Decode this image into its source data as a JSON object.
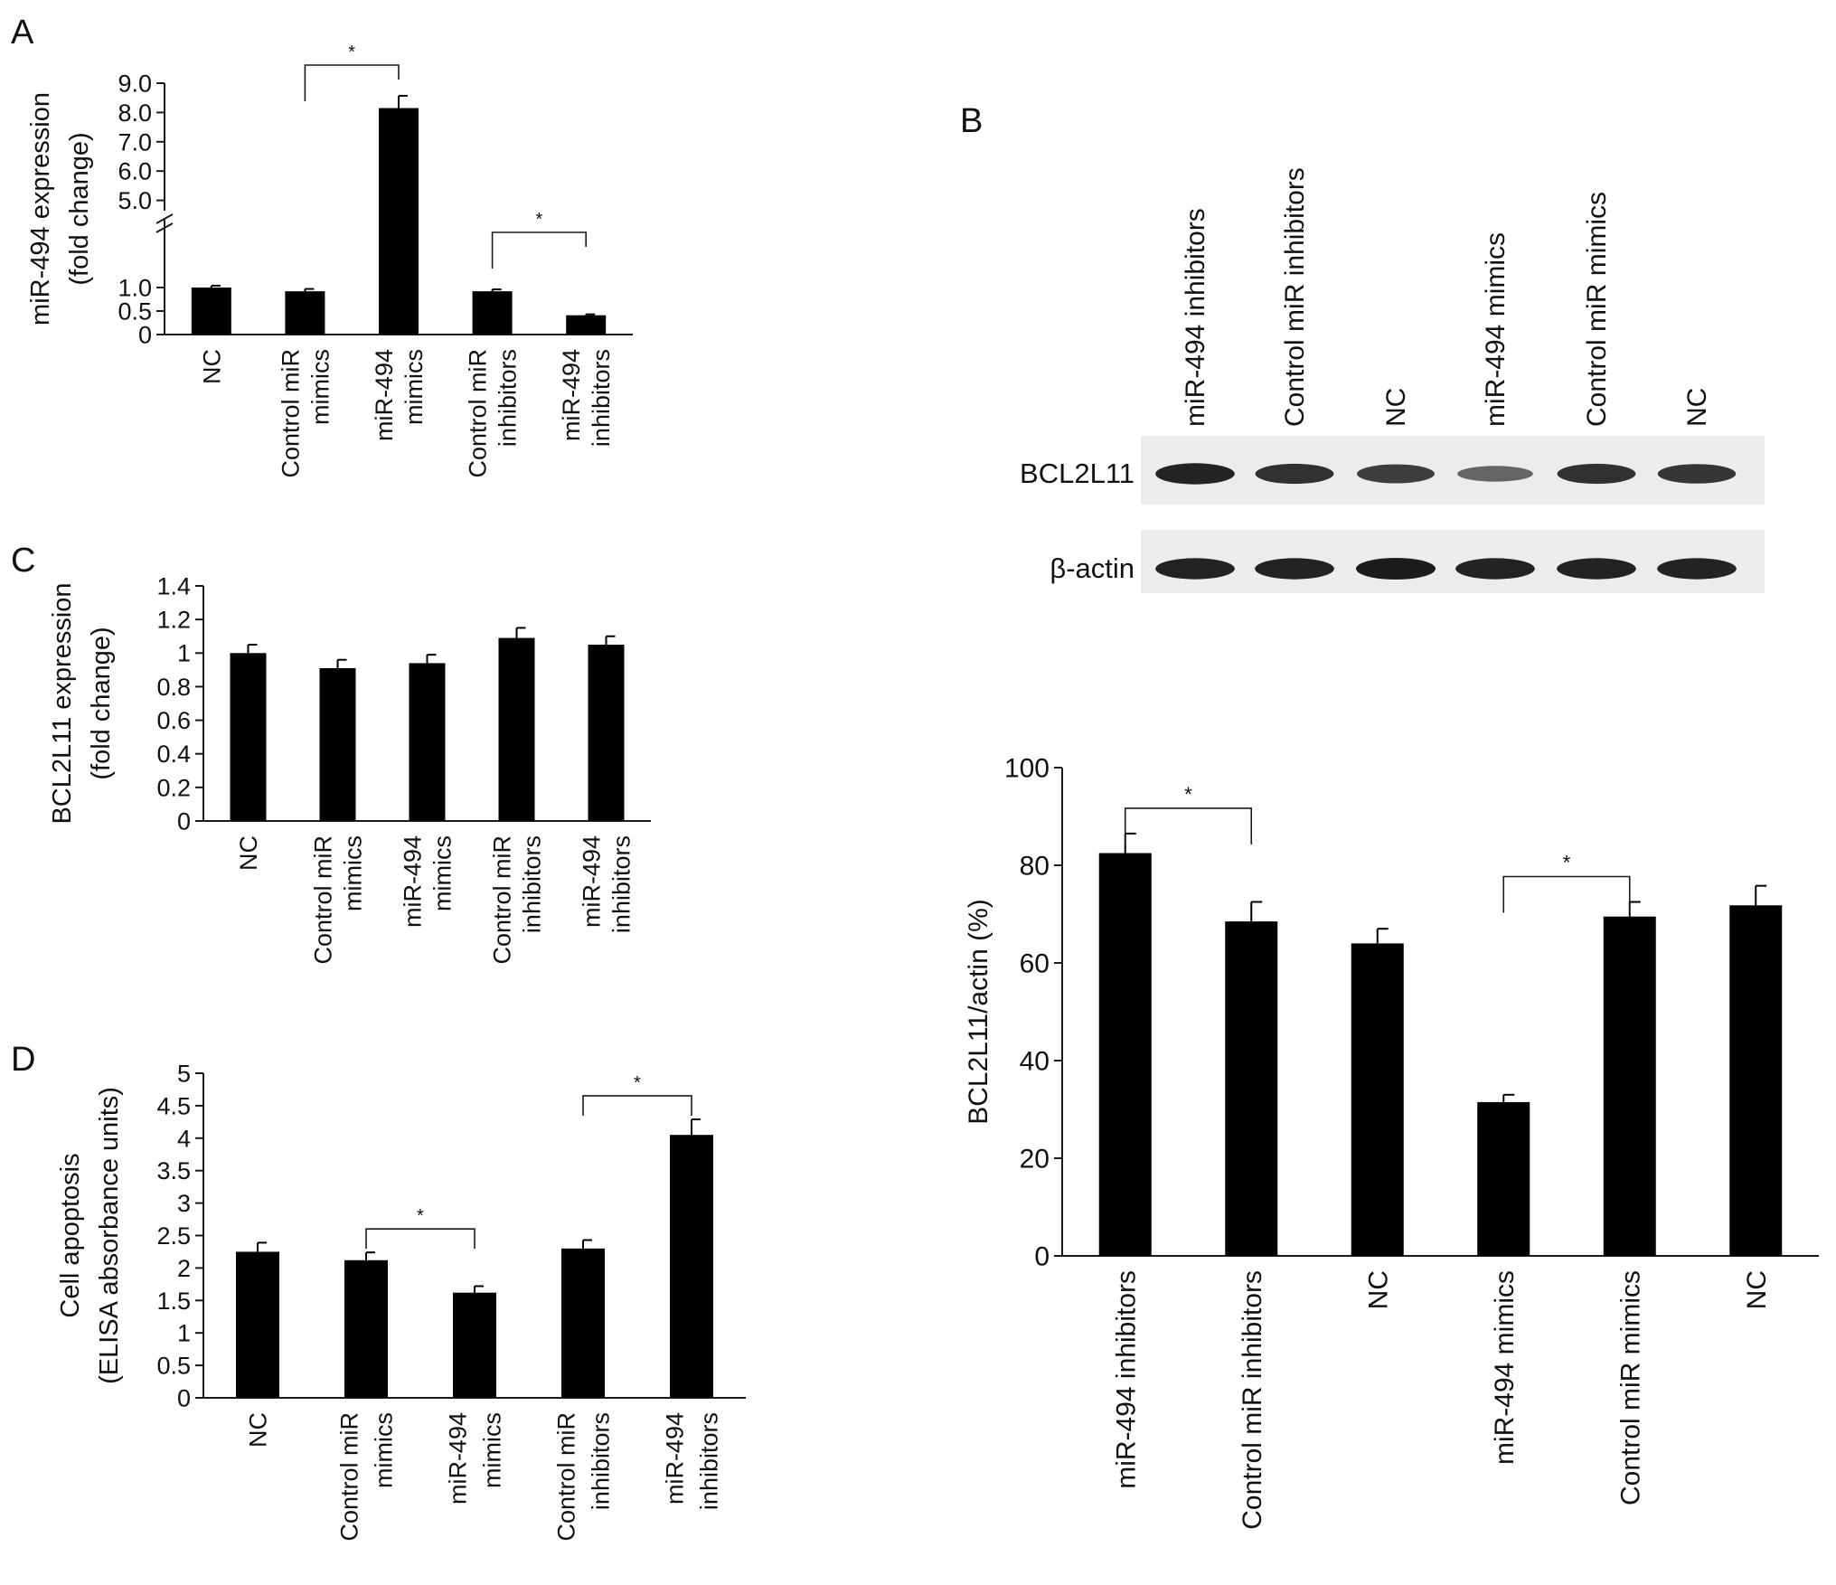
{
  "colors": {
    "bar": "#000000",
    "axis": "#1a1a1a",
    "text": "#111111",
    "blot_bg": "#ececec"
  },
  "chart_data": [
    {
      "panel": "A",
      "type": "bar",
      "broken_axis": true,
      "ylabel": [
        "miR-494 expression",
        "(fold change)"
      ],
      "categories": [
        [
          "NC"
        ],
        [
          "Control miR",
          "mimics"
        ],
        [
          "miR-494",
          "mimics"
        ],
        [
          "Control miR",
          "inhibitors"
        ],
        [
          "miR-494",
          "inhibitors"
        ]
      ],
      "values": [
        1.0,
        0.92,
        8.15,
        0.92,
        0.41
      ],
      "errors": [
        0.04,
        0.05,
        0.42,
        0.04,
        0.02
      ],
      "yticks_lower": [
        "0",
        "0.5",
        "1.0"
      ],
      "yticks_upper": [
        "5.0",
        "6.0",
        "7.0",
        "8.0",
        "9.0"
      ],
      "ylim_lower": [
        0,
        1.5
      ],
      "ylim_upper": [
        4.0,
        9.0
      ],
      "significance": [
        {
          "from": 1,
          "to": 2,
          "label": "*"
        },
        {
          "from": 3,
          "to": 4,
          "label": "*"
        }
      ]
    },
    {
      "panel": "C",
      "type": "bar",
      "ylabel": [
        "BCL2L11 expression",
        "(fold change)"
      ],
      "categories": [
        [
          "NC"
        ],
        [
          "Control miR",
          "mimics"
        ],
        [
          "miR-494",
          "mimics"
        ],
        [
          "Control miR",
          "inhibitors"
        ],
        [
          "miR-494",
          "inhibitors"
        ]
      ],
      "values": [
        1.0,
        0.91,
        0.94,
        1.09,
        1.05
      ],
      "errors": [
        0.05,
        0.05,
        0.05,
        0.06,
        0.05
      ],
      "yticks": [
        "0",
        "0.2",
        "0.4",
        "0.6",
        "0.8",
        "1",
        "1.2",
        "1.4"
      ],
      "ylim": [
        0,
        1.4
      ]
    },
    {
      "panel": "D",
      "type": "bar",
      "ylabel": [
        "Cell apoptosis",
        "(ELISA absorbance units)"
      ],
      "categories": [
        [
          "NC"
        ],
        [
          "Control miR",
          "mimics"
        ],
        [
          "miR-494",
          "mimics"
        ],
        [
          "Control miR",
          "inhibitors"
        ],
        [
          "miR-494",
          "inhibitors"
        ]
      ],
      "values": [
        2.25,
        2.12,
        1.62,
        2.3,
        4.05
      ],
      "errors": [
        0.14,
        0.12,
        0.1,
        0.13,
        0.24
      ],
      "yticks": [
        "0",
        "0.5",
        "1",
        "1.5",
        "2",
        "2.5",
        "3",
        "3.5",
        "4",
        "4.5",
        "5"
      ],
      "ylim": [
        0,
        5
      ],
      "significance": [
        {
          "from": 1,
          "to": 2,
          "label": "*"
        },
        {
          "from": 3,
          "to": 4,
          "label": "*"
        }
      ]
    },
    {
      "panel": "B",
      "type": "bar",
      "ylabel": [
        "BCL2L11/actin (%)"
      ],
      "categories": [
        [
          "miR-494 inhibitors"
        ],
        [
          "Control miR inhibitors"
        ],
        [
          "NC"
        ],
        [
          "miR-494 mimics"
        ],
        [
          "Control miR mimics"
        ],
        [
          "NC"
        ]
      ],
      "values": [
        82.5,
        68.5,
        64,
        31.5,
        69.5,
        71.8
      ],
      "errors": [
        4.0,
        4.0,
        3.0,
        1.5,
        3.0,
        4.0
      ],
      "yticks": [
        "0",
        "20",
        "40",
        "60",
        "80",
        "100"
      ],
      "ylim": [
        0,
        100
      ],
      "significance": [
        {
          "from": 0,
          "to": 1,
          "label": "*"
        },
        {
          "from": 3,
          "to": 4,
          "label": "*"
        }
      ]
    }
  ],
  "blot": {
    "lane_labels": [
      "miR-494 inhibitors",
      "Control miR inhibitors",
      "NC",
      "miR-494 mimics",
      "Control miR mimics",
      "NC"
    ],
    "rows": [
      {
        "label": "BCL2L11",
        "intensity": [
          0.95,
          0.85,
          0.75,
          0.45,
          0.85,
          0.8
        ]
      },
      {
        "label": "β-actin",
        "intensity": [
          0.95,
          0.95,
          1.0,
          0.95,
          0.95,
          0.95
        ]
      }
    ]
  },
  "panel_letters": {
    "a": "A",
    "b": "B",
    "c": "C",
    "d": "D"
  }
}
